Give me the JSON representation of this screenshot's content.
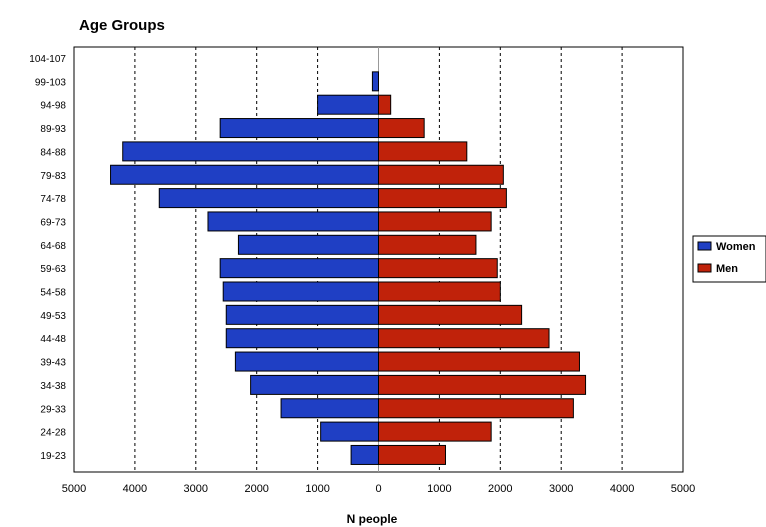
{
  "chart_data": {
    "type": "bar",
    "orientation": "horizontal",
    "title": "Age Groups",
    "xlabel": "N people",
    "ylabel": "",
    "xlim": [
      -5000,
      5000
    ],
    "x_ticks": [
      -5000,
      -4000,
      -3000,
      -2000,
      -1000,
      0,
      1000,
      2000,
      3000,
      4000,
      5000
    ],
    "x_tick_labels": [
      "5000",
      "4000",
      "3000",
      "2000",
      "1000",
      "0",
      "1000",
      "2000",
      "3000",
      "4000",
      "5000"
    ],
    "grid": "vertical-dashed",
    "legend_position": "right",
    "categories": [
      "104-107",
      "99-103",
      "94-98",
      "89-93",
      "84-88",
      "79-83",
      "74-78",
      "69-73",
      "64-68",
      "59-63",
      "54-58",
      "49-53",
      "44-48",
      "39-43",
      "34-38",
      "29-33",
      "24-28",
      "19-23"
    ],
    "series": [
      {
        "name": "Women",
        "color": "#1f3fc4",
        "values": [
          0,
          100,
          1000,
          2600,
          4200,
          4400,
          3600,
          2800,
          2300,
          2600,
          2550,
          2500,
          2500,
          2350,
          2100,
          1600,
          950,
          450
        ]
      },
      {
        "name": "Men",
        "color": "#c0220a",
        "values": [
          0,
          0,
          200,
          750,
          1450,
          2050,
          2100,
          1850,
          1600,
          1950,
          2000,
          2350,
          2800,
          3300,
          3400,
          3200,
          1850,
          1100
        ]
      }
    ]
  }
}
